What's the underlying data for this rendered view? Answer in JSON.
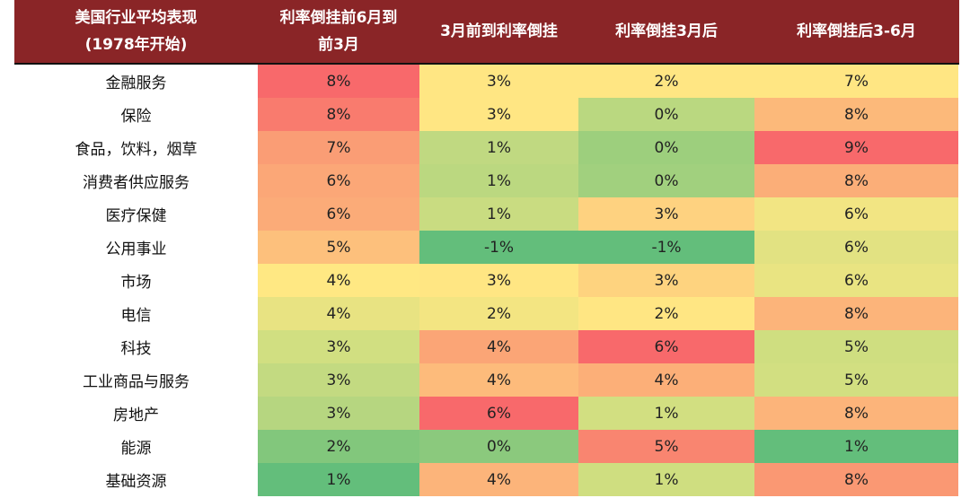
{
  "chart_data": {
    "type": "heatmap",
    "title": "",
    "columns": [
      "美国行业平均表现（1978年开始）",
      "利率倒挂前6月到前3月",
      "3月前到利率倒挂",
      "利率倒挂3月后",
      "利率倒挂后3-6月"
    ],
    "rows": [
      "金融服务",
      "保险",
      "食品，饮料，烟草",
      "消费者供应服务",
      "医疗保健",
      "公用事业",
      "市场",
      "电信",
      "科技",
      "工业商品与服务",
      "房地产",
      "能源",
      "基础资源"
    ],
    "series": [
      {
        "name": "利率倒挂前6月到前3月",
        "values": [
          8,
          8,
          7,
          6,
          6,
          5,
          4,
          4,
          3,
          3,
          3,
          2,
          1
        ]
      },
      {
        "name": "3月前到利率倒挂",
        "values": [
          3,
          3,
          1,
          1,
          1,
          -1,
          3,
          2,
          4,
          4,
          6,
          0,
          4
        ]
      },
      {
        "name": "利率倒挂3月后",
        "values": [
          2,
          0,
          0,
          0,
          3,
          -1,
          3,
          2,
          6,
          4,
          1,
          5,
          1
        ]
      },
      {
        "name": "利率倒挂后3-6月",
        "values": [
          7,
          8,
          9,
          8,
          6,
          6,
          6,
          8,
          5,
          5,
          8,
          1,
          8
        ]
      }
    ],
    "unit": "%"
  },
  "header": {
    "col0": "美国行业平均表现\n(1978年开始)",
    "col0_line1": "美国行业平均表现",
    "col0_line2": "(1978年开始)",
    "col1_line1": "利率倒挂前6月到",
    "col1_line2": "前3月",
    "col2": "3月前到利率倒挂",
    "col3": "利率倒挂3月后",
    "col4": "利率倒挂后3-6月"
  },
  "rows": [
    {
      "label": "金融服务",
      "v": [
        "8%",
        "3%",
        "2%",
        "7%"
      ],
      "bg": [
        "#f8696b",
        "#ffe683",
        "#ffe683",
        "#ffe683"
      ]
    },
    {
      "label": "保险",
      "v": [
        "8%",
        "3%",
        "0%",
        "8%"
      ],
      "bg": [
        "#f97b6e",
        "#ffe683",
        "#bad880",
        "#fcb97a"
      ]
    },
    {
      "label": "食品，饮料，烟草",
      "v": [
        "7%",
        "1%",
        "0%",
        "9%"
      ],
      "bg": [
        "#fa9d75",
        "#c0d981",
        "#9dcf7d",
        "#f8696b"
      ]
    },
    {
      "label": "消费者供应服务",
      "v": [
        "6%",
        "1%",
        "0%",
        "8%"
      ],
      "bg": [
        "#fba777",
        "#bbd880",
        "#a1d07e",
        "#fbae78"
      ]
    },
    {
      "label": "医疗保健",
      "v": [
        "6%",
        "1%",
        "3%",
        "6%"
      ],
      "bg": [
        "#fbab78",
        "#c9dc81",
        "#fed280",
        "#f2e583"
      ]
    },
    {
      "label": "公用事业",
      "v": [
        "5%",
        "-1%",
        "-1%",
        "6%"
      ],
      "bg": [
        "#fdc07c",
        "#63be7b",
        "#63be7b",
        "#e2e282"
      ]
    },
    {
      "label": "市场",
      "v": [
        "4%",
        "3%",
        "3%",
        "6%"
      ],
      "bg": [
        "#ffe883",
        "#ffe683",
        "#fed37f",
        "#e9e482"
      ]
    },
    {
      "label": "电信",
      "v": [
        "4%",
        "2%",
        "2%",
        "8%"
      ],
      "bg": [
        "#e8e382",
        "#f3e582",
        "#ffe683",
        "#fcb47a"
      ]
    },
    {
      "label": "科技",
      "v": [
        "3%",
        "4%",
        "6%",
        "5%"
      ],
      "bg": [
        "#d1df81",
        "#fba576",
        "#f8696b",
        "#cfde80"
      ]
    },
    {
      "label": "工业商品与服务",
      "v": [
        "3%",
        "4%",
        "4%",
        "5%"
      ],
      "bg": [
        "#c3da81",
        "#fdbb7b",
        "#fcaf78",
        "#d2df81"
      ]
    },
    {
      "label": "房地产",
      "v": [
        "3%",
        "6%",
        "1%",
        "8%"
      ],
      "bg": [
        "#b6d680",
        "#f8696b",
        "#d2df81",
        "#fcb47a"
      ]
    },
    {
      "label": "能源",
      "v": [
        "2%",
        "0%",
        "5%",
        "1%"
      ],
      "bg": [
        "#82c77c",
        "#8bc97d",
        "#f98570",
        "#63be7b"
      ]
    },
    {
      "label": "基础资源",
      "v": [
        "1%",
        "4%",
        "1%",
        "8%"
      ],
      "bg": [
        "#63be7b",
        "#fcb47a",
        "#cfde80",
        "#fa9873"
      ]
    }
  ],
  "colors": {
    "header_bg": "#8a2527",
    "header_text": "#ffffff"
  }
}
